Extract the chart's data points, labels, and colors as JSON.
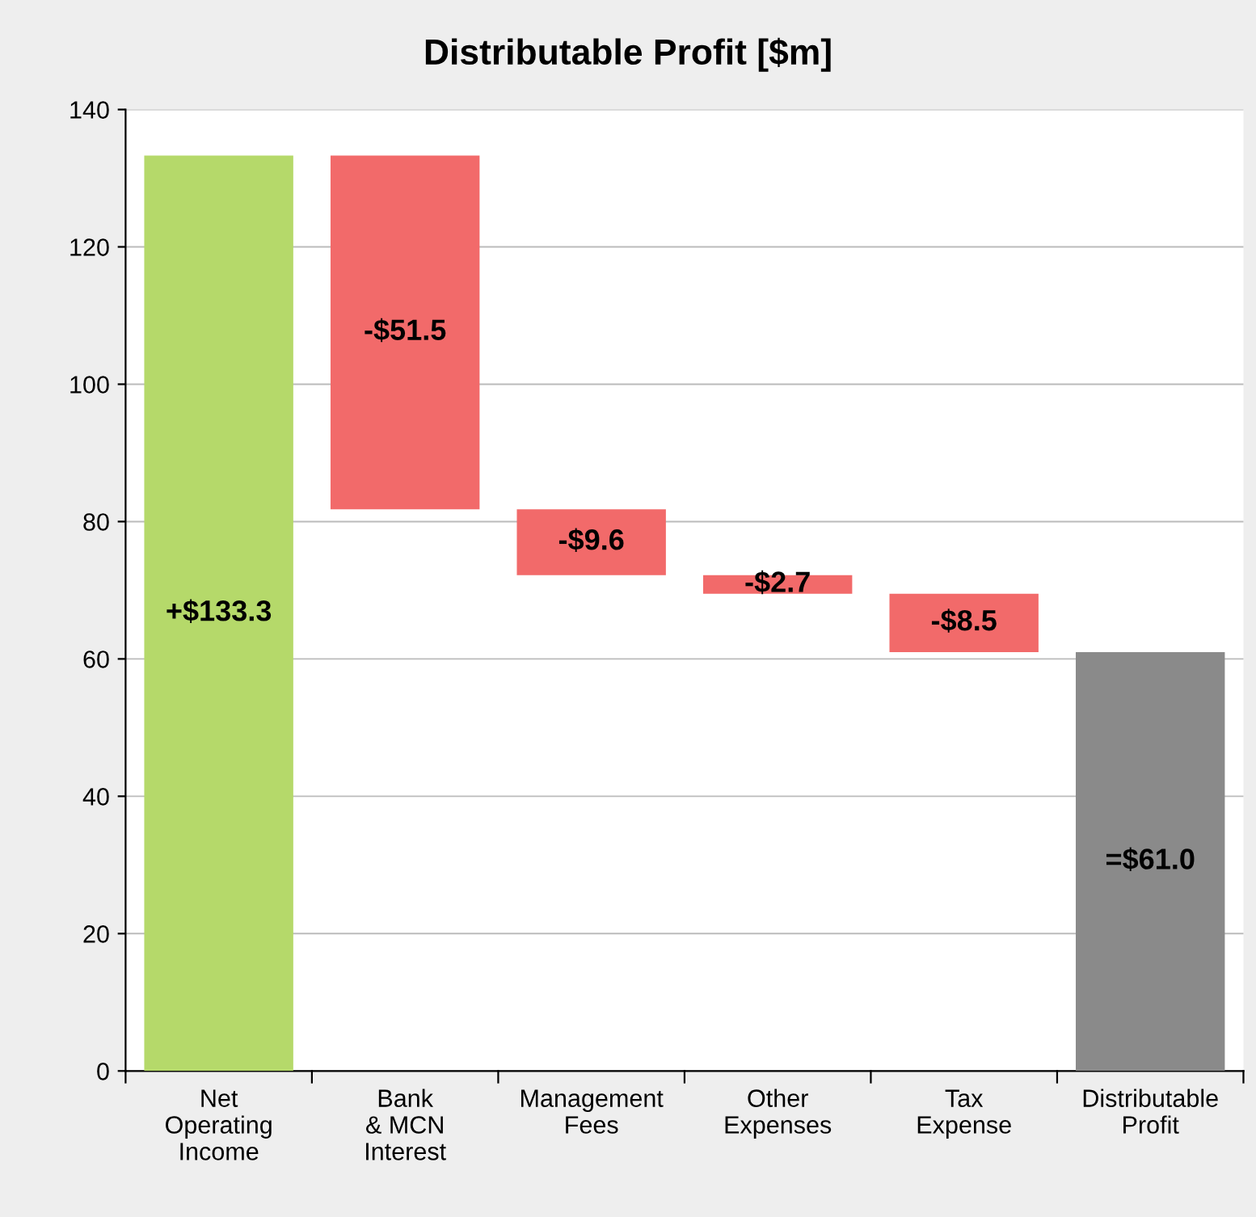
{
  "chart_data": {
    "type": "bar",
    "title": "Distributable Profit [$m]",
    "categories": [
      "Net\nOperating\nIncome",
      "Bank\n& MCN\nInterest",
      "Management\nFees",
      "Other\nExpenses",
      "Tax\nExpense",
      "Distributable\nProfit"
    ],
    "values": [
      133.3,
      -51.5,
      -9.6,
      -2.7,
      -8.5,
      61.0
    ],
    "base": [
      0,
      133.3,
      81.8,
      72.2,
      69.5,
      0
    ],
    "colors": [
      "#b5d96a",
      "#f26a6a",
      "#f26a6a",
      "#f26a6a",
      "#f26a6a",
      "#8a8a8a"
    ],
    "value_labels": [
      "+$133.3",
      "-$51.5",
      "-$9.6",
      "-$2.7",
      "-$8.5",
      "=$61.0"
    ],
    "ylim": [
      0,
      140
    ],
    "yticks": [
      0,
      20,
      40,
      60,
      80,
      100,
      120,
      140
    ],
    "grid": "y",
    "legend": false
  }
}
